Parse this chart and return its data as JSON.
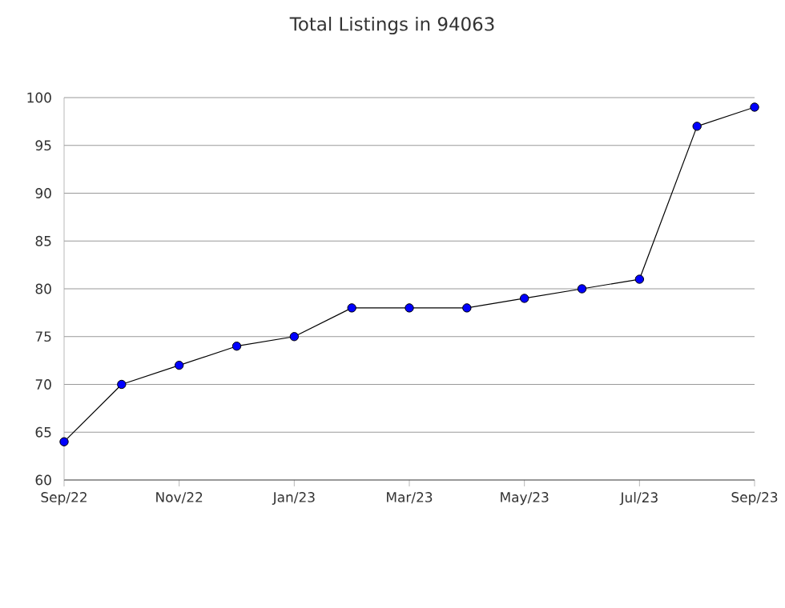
{
  "chart_data": {
    "type": "line",
    "title": "Total Listings in 94063",
    "x": [
      "2022-09",
      "2022-10",
      "2022-11",
      "2022-12",
      "2023-01",
      "2023-02",
      "2023-03",
      "2023-04",
      "2023-05",
      "2023-06",
      "2023-07",
      "2023-08",
      "2023-09"
    ],
    "series": [
      {
        "color": "#0000ff",
        "values": [
          64,
          70,
          72,
          74,
          75,
          78,
          78,
          78,
          79,
          80,
          81,
          97,
          99
        ]
      }
    ],
    "xlim": [
      "2022-09",
      "2023-09"
    ],
    "xticks": [
      {
        "value": "2022-09",
        "label": "Sep/22"
      },
      {
        "value": "2022-11",
        "label": "Nov/22"
      },
      {
        "value": "2023-01",
        "label": "Jan/23"
      },
      {
        "value": "2023-03",
        "label": "Mar/23"
      },
      {
        "value": "2023-05",
        "label": "May/23"
      },
      {
        "value": "2023-07",
        "label": "Jul/23"
      },
      {
        "value": "2023-09",
        "label": "Sep/23"
      }
    ],
    "ylim": [
      60,
      100
    ],
    "yticks": [
      60,
      65,
      70,
      75,
      80,
      85,
      90,
      95,
      100
    ],
    "grid": "y",
    "marker": "circle",
    "line_style": "solid"
  }
}
